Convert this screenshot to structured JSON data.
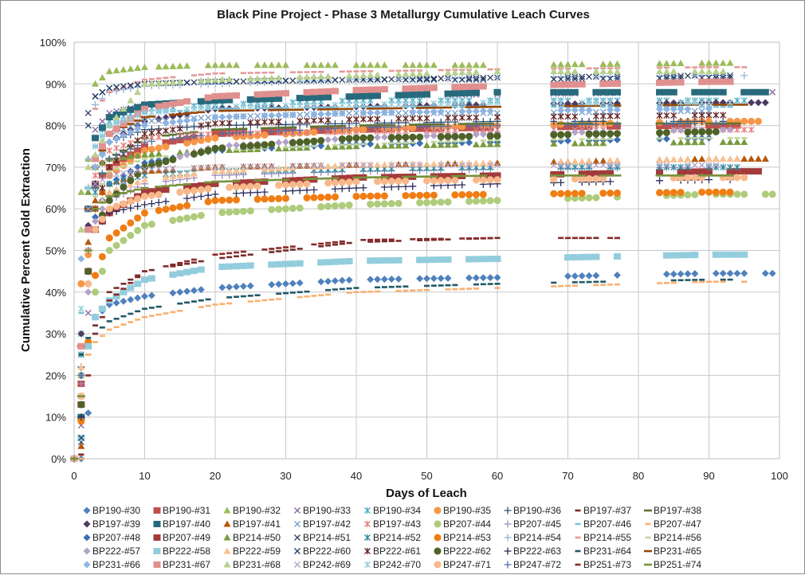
{
  "chart_data": {
    "type": "scatter",
    "title": "Black Pine Project - Phase 3 Metallurgy Cumulative  Leach Curves",
    "xlabel": "Days of Leach",
    "ylabel": "Cumulative Percent Gold Extraction",
    "xlim": [
      0,
      100
    ],
    "ylim": [
      0,
      100
    ],
    "x_ticks": [
      "0",
      "10",
      "20",
      "30",
      "40",
      "50",
      "60",
      "70",
      "80",
      "90",
      "100"
    ],
    "y_ticks": [
      "0%",
      "10%",
      "20%",
      "30%",
      "40%",
      "50%",
      "60%",
      "70%",
      "80%",
      "90%",
      "100%"
    ],
    "grid": true,
    "legend_placement": "bottom",
    "sample_days": [
      0,
      1,
      2,
      3,
      5,
      10,
      20,
      40,
      60,
      90
    ],
    "series": [
      {
        "name": "BP190-#30",
        "marker": "diamond",
        "color": "#4F81BD",
        "end": 99,
        "values": [
          0,
          0,
          11,
          34,
          37,
          39,
          41,
          43,
          43.5,
          44.5
        ]
      },
      {
        "name": "BP190-#31",
        "marker": "square",
        "color": "#C0504D",
        "end": 95,
        "values": [
          0,
          18,
          60,
          66,
          70,
          75,
          78,
          79,
          79.5,
          80
        ]
      },
      {
        "name": "BP190-#32",
        "marker": "triangle",
        "color": "#9BBB59",
        "end": 94,
        "values": [
          0,
          64,
          72,
          90,
          93,
          94,
          94.5,
          94.5,
          94.5,
          95
        ]
      },
      {
        "name": "BP190-#33",
        "marker": "x",
        "color": "#8064A2",
        "end": 99,
        "values": [
          0,
          8,
          35,
          79,
          83,
          85,
          86,
          87,
          87.5,
          88
        ]
      },
      {
        "name": "BP190-#34",
        "marker": "asterisk",
        "color": "#4BACC6",
        "end": 95,
        "values": [
          0,
          30,
          60,
          77,
          81,
          84,
          85,
          86,
          86,
          86
        ]
      },
      {
        "name": "BP190-#35",
        "marker": "circle",
        "color": "#F79646",
        "end": 99,
        "values": [
          0,
          42,
          49,
          60,
          68,
          74,
          77,
          79,
          80,
          81
        ]
      },
      {
        "name": "BP190-#36",
        "marker": "plus",
        "color": "#2C4D75",
        "end": 92,
        "values": [
          0,
          22,
          65,
          70,
          76,
          79,
          80,
          80.5,
          81,
          81
        ]
      },
      {
        "name": "BP197-#37",
        "marker": "dash",
        "color": "#772C2A",
        "end": 82,
        "values": [
          0,
          1,
          25,
          32,
          40,
          45,
          48,
          52,
          53,
          53
        ]
      },
      {
        "name": "BP197-#38",
        "marker": "line",
        "color": "#5F7530",
        "end": 95,
        "values": [
          0,
          27,
          55,
          65,
          72,
          77,
          79,
          80,
          80.5,
          80.5
        ]
      },
      {
        "name": "BP197-#39",
        "marker": "diamond",
        "color": "#4D3B62",
        "end": 98,
        "values": [
          0,
          30,
          56,
          66,
          76,
          81,
          84,
          84.5,
          85,
          85.5
        ]
      },
      {
        "name": "BP197-#40",
        "marker": "square",
        "color": "#276A7C",
        "end": 98,
        "values": [
          0,
          10,
          60,
          77,
          82,
          85,
          86,
          87,
          88,
          88
        ]
      },
      {
        "name": "BP197-#41",
        "marker": "triangle",
        "color": "#B65708",
        "end": 98,
        "values": [
          0,
          3,
          52,
          62,
          66,
          69,
          70,
          70.5,
          71,
          72
        ]
      },
      {
        "name": "BP197-#42",
        "marker": "x",
        "color": "#729ACA",
        "end": 92,
        "values": [
          0,
          5,
          50,
          70,
          78,
          81,
          82,
          83,
          83,
          83.5
        ]
      },
      {
        "name": "BP197-#43",
        "marker": "asterisk",
        "color": "#E6807C",
        "end": 98,
        "values": [
          0,
          20,
          50,
          68,
          74,
          77,
          78,
          78.5,
          79,
          79
        ]
      },
      {
        "name": "BP207-#44",
        "marker": "circle",
        "color": "#AFCB7C",
        "end": 99,
        "values": [
          0,
          20,
          28,
          40,
          50,
          56,
          59,
          61,
          62,
          63.5
        ]
      },
      {
        "name": "BP207-#45",
        "marker": "plus",
        "color": "#A18CC0",
        "end": 92,
        "values": [
          0,
          18,
          45,
          55,
          62,
          66,
          68,
          69,
          69.5,
          70
        ]
      },
      {
        "name": "BP207-#46",
        "marker": "dash",
        "color": "#7DC3D8",
        "end": 95,
        "values": [
          0,
          35,
          65,
          75,
          80,
          83,
          84,
          84.5,
          84.5,
          84.5
        ]
      },
      {
        "name": "BP207-#47",
        "marker": "dash",
        "color": "#F9B071",
        "end": 95,
        "values": [
          0,
          0,
          25,
          28,
          31,
          34,
          37,
          40,
          41,
          42.5
        ]
      },
      {
        "name": "BP207-#48",
        "marker": "diamond",
        "color": "#3C6EB4",
        "end": 90,
        "values": [
          0,
          20,
          45,
          58,
          66,
          71,
          74,
          75.5,
          76,
          77
        ]
      },
      {
        "name": "BP207-#49",
        "marker": "square",
        "color": "#A33A3A",
        "end": 99,
        "values": [
          0,
          13,
          45,
          55,
          59,
          64,
          66,
          67.5,
          68,
          69
        ]
      },
      {
        "name": "BP214-#50",
        "marker": "triangle",
        "color": "#7A9A3F",
        "end": 95,
        "values": [
          0,
          55,
          64,
          70,
          72,
          73,
          74,
          75,
          75.5,
          76
        ]
      },
      {
        "name": "BP214-#51",
        "marker": "x",
        "color": "#2F3F5F",
        "end": 93,
        "values": [
          0,
          4,
          83,
          87,
          89,
          90,
          90.5,
          91,
          91.5,
          92
        ]
      },
      {
        "name": "BP214-#52",
        "marker": "asterisk",
        "color": "#2E8BA0",
        "end": 95,
        "values": [
          0,
          25,
          55,
          64,
          66,
          68,
          69,
          69.5,
          70,
          70
        ]
      },
      {
        "name": "BP214-#53",
        "marker": "circle",
        "color": "#F07D13",
        "end": 95,
        "values": [
          0,
          9,
          28,
          44,
          53,
          59,
          62,
          63,
          63.5,
          64
        ]
      },
      {
        "name": "BP214-#54",
        "marker": "plus",
        "color": "#95B3D7",
        "end": 95,
        "values": [
          0,
          20,
          72,
          85,
          88,
          89.5,
          90,
          91,
          91.5,
          92
        ]
      },
      {
        "name": "BP214-#55",
        "marker": "dash",
        "color": "#E59A99",
        "end": 95,
        "values": [
          0,
          1,
          60,
          84,
          88,
          91,
          92.5,
          93,
          93.5,
          94
        ]
      },
      {
        "name": "BP214-#56",
        "marker": "dash",
        "color": "#C3D69B",
        "end": 95,
        "values": [
          0,
          20,
          50,
          63,
          69,
          72,
          74,
          75.5,
          76.5,
          77
        ]
      },
      {
        "name": "BP222-#57",
        "marker": "diamond",
        "color": "#B3A2C7",
        "end": 93,
        "values": [
          0,
          15,
          40,
          57,
          63,
          70,
          75,
          77,
          78,
          79
        ]
      },
      {
        "name": "BP222-#58",
        "marker": "square",
        "color": "#93CDDD",
        "end": 95,
        "values": [
          0,
          5,
          27,
          34,
          38,
          43,
          46,
          47.5,
          48,
          49
        ]
      },
      {
        "name": "BP222-#59",
        "marker": "triangle",
        "color": "#FAC090",
        "end": 95,
        "values": [
          0,
          22,
          50,
          60,
          64,
          67,
          69,
          70.5,
          71,
          72
        ]
      },
      {
        "name": "BP222-#60",
        "marker": "x",
        "color": "#1F3864",
        "end": 95,
        "values": [
          0,
          5,
          80,
          87,
          89,
          90,
          90.5,
          91,
          91,
          91.5
        ]
      },
      {
        "name": "BP222-#61",
        "marker": "asterisk",
        "color": "#632523",
        "end": 93,
        "values": [
          0,
          15,
          45,
          60,
          70,
          78,
          80.5,
          81.5,
          82,
          82.5
        ]
      },
      {
        "name": "BP222-#62",
        "marker": "circle",
        "color": "#4F6228",
        "end": 93,
        "values": [
          0,
          13,
          45,
          55,
          62,
          70,
          74.5,
          77,
          77.5,
          78.5
        ]
      },
      {
        "name": "BP222-#63",
        "marker": "plus",
        "color": "#2B2B5B",
        "end": 93,
        "values": [
          0,
          10,
          42,
          55,
          59,
          61,
          63.5,
          65,
          66,
          67
        ]
      },
      {
        "name": "BP231-#64",
        "marker": "dash",
        "color": "#215968",
        "end": 93,
        "values": [
          0,
          25,
          29,
          30,
          33,
          36,
          38.5,
          41,
          42,
          43
        ]
      },
      {
        "name": "BP231-#65",
        "marker": "line",
        "color": "#984807",
        "end": 95,
        "values": [
          0,
          27,
          60,
          70,
          78,
          82,
          83.5,
          84,
          84.5,
          85
        ]
      },
      {
        "name": "BP231-#66",
        "marker": "diamond",
        "color": "#8DB3E2",
        "end": 90,
        "values": [
          0,
          48,
          55,
          70,
          76,
          80,
          82,
          83,
          83.5,
          84
        ]
      },
      {
        "name": "BP231-#67",
        "marker": "square",
        "color": "#E0908E",
        "end": 95,
        "values": [
          0,
          27,
          55,
          72,
          78,
          84,
          87,
          88.5,
          89.5,
          90.5
        ]
      },
      {
        "name": "BP231-#68",
        "marker": "triangle",
        "color": "#B8D08E",
        "end": 93,
        "values": [
          0,
          55,
          70,
          73,
          80,
          90,
          91,
          92,
          93,
          93
        ]
      },
      {
        "name": "BP242-#69",
        "marker": "x",
        "color": "#B1A0C7",
        "end": 92,
        "values": [
          0,
          15,
          60,
          66,
          68,
          69.5,
          70,
          70.5,
          70.5,
          70.5
        ]
      },
      {
        "name": "BP242-#70",
        "marker": "asterisk",
        "color": "#92CDDC",
        "end": 93,
        "values": [
          0,
          36,
          65,
          75,
          80,
          83,
          84.5,
          85,
          85.5,
          85.5
        ]
      },
      {
        "name": "BP247-#71",
        "marker": "circle",
        "color": "#F8B88A",
        "end": 95,
        "values": [
          0,
          15,
          42,
          55,
          60,
          63,
          65,
          66.5,
          67,
          67.5
        ]
      },
      {
        "name": "BP247-#72",
        "marker": "plus",
        "color": "#4F6FA7",
        "end": 92,
        "values": [
          0,
          20,
          50,
          65,
          72,
          76,
          78,
          79.5,
          80,
          80.5
        ]
      },
      {
        "name": "BP251-#73",
        "marker": "dash",
        "color": "#8B2A2A",
        "end": 82,
        "values": [
          0,
          1,
          20,
          30,
          38,
          45,
          49,
          52.5,
          53,
          53
        ]
      },
      {
        "name": "BP251-#74",
        "marker": "line",
        "color": "#76923C",
        "end": 95,
        "values": [
          0,
          15,
          50,
          60,
          63,
          65,
          66.5,
          67.5,
          68,
          68
        ]
      }
    ]
  }
}
